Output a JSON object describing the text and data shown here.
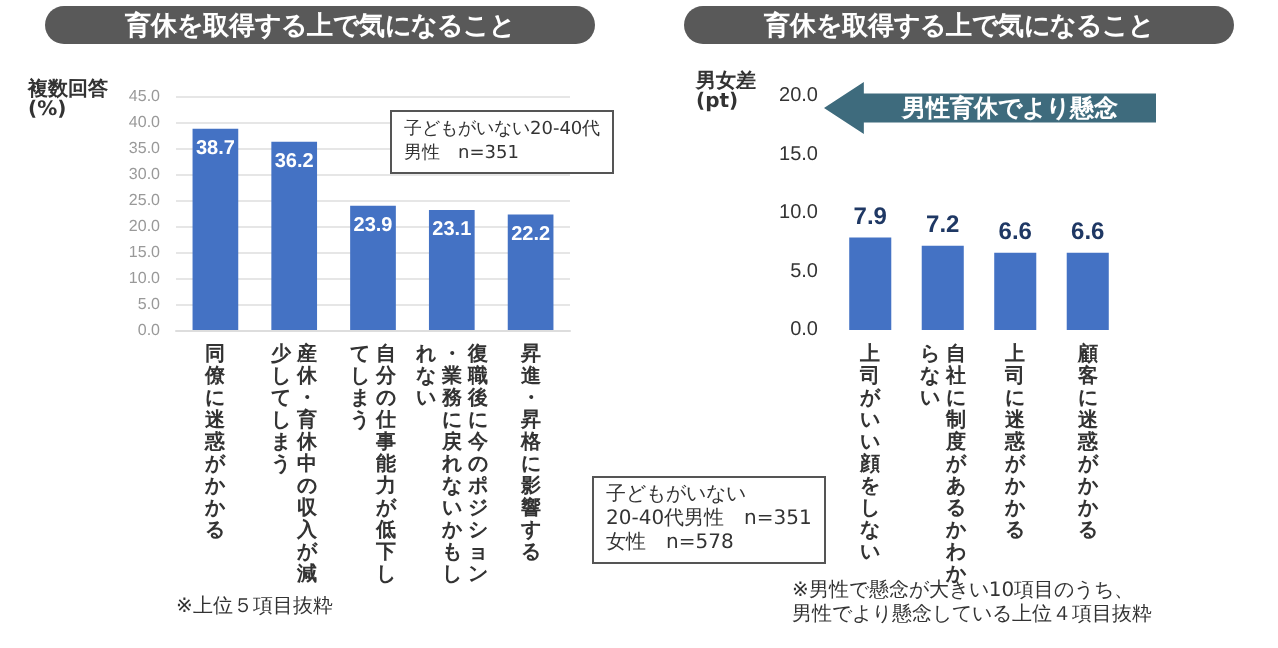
{
  "chart_data": [
    {
      "type": "bar",
      "title": "育休を取得する上で気になること",
      "ylabel": "複数回答\n(%)",
      "categories": [
        "同僚に迷惑がかかる",
        "産休・育休中の収入が減少してしまう",
        "自分の仕事能力が低下してしまう",
        "復職後に今のポジション・業務に戻れないかもしれない",
        "昇進・昇格に影響する"
      ],
      "values": [
        38.7,
        36.2,
        23.9,
        23.1,
        22.2
      ],
      "color": "#4472c4",
      "ylim": [
        0,
        45
      ],
      "yticks": [
        {
          "value": 0,
          "label": "0.0"
        },
        {
          "value": 5,
          "label": "5.0"
        },
        {
          "value": 10,
          "label": "10.0"
        },
        {
          "value": 15,
          "label": "15.0"
        },
        {
          "value": 20,
          "label": "20.0"
        },
        {
          "value": 25,
          "label": "25.0"
        },
        {
          "value": 30,
          "label": "30.0"
        },
        {
          "value": 35,
          "label": "35.0"
        },
        {
          "value": 40,
          "label": "40.0"
        },
        {
          "value": 45,
          "label": "45.0"
        }
      ],
      "grid": "y",
      "data_labels": true,
      "annotations": [
        "子どもがいない20-40代",
        "男性　n=351",
        "※上位５項目抜粋"
      ]
    },
    {
      "type": "bar",
      "title": "育休を取得する上で気になること",
      "ylabel": "男女差\n(pt)",
      "categories": [
        "上司がいい顔をしない",
        "自社に制度があるかわからない",
        "上司に迷惑がかかる",
        "顧客に迷惑がかかる"
      ],
      "values": [
        7.9,
        7.2,
        6.6,
        6.6
      ],
      "color": "#4472c4",
      "ylim": [
        0,
        20
      ],
      "yticks": [
        {
          "value": 0,
          "label": "0.0"
        },
        {
          "value": 5,
          "label": "5.0"
        },
        {
          "value": 10,
          "label": "10.0"
        },
        {
          "value": 15,
          "label": "15.0"
        },
        {
          "value": 20,
          "label": "20.0"
        }
      ],
      "grid": false,
      "data_labels": true,
      "annotations": [
        "男性育休でより懸念",
        "子どもがいない",
        "20-40代男性　n=351",
        "女性　n=578",
        "※男性で懸念が大きい10項目のうち、",
        "男性でより懸念している上位４項目抜粋"
      ]
    }
  ]
}
